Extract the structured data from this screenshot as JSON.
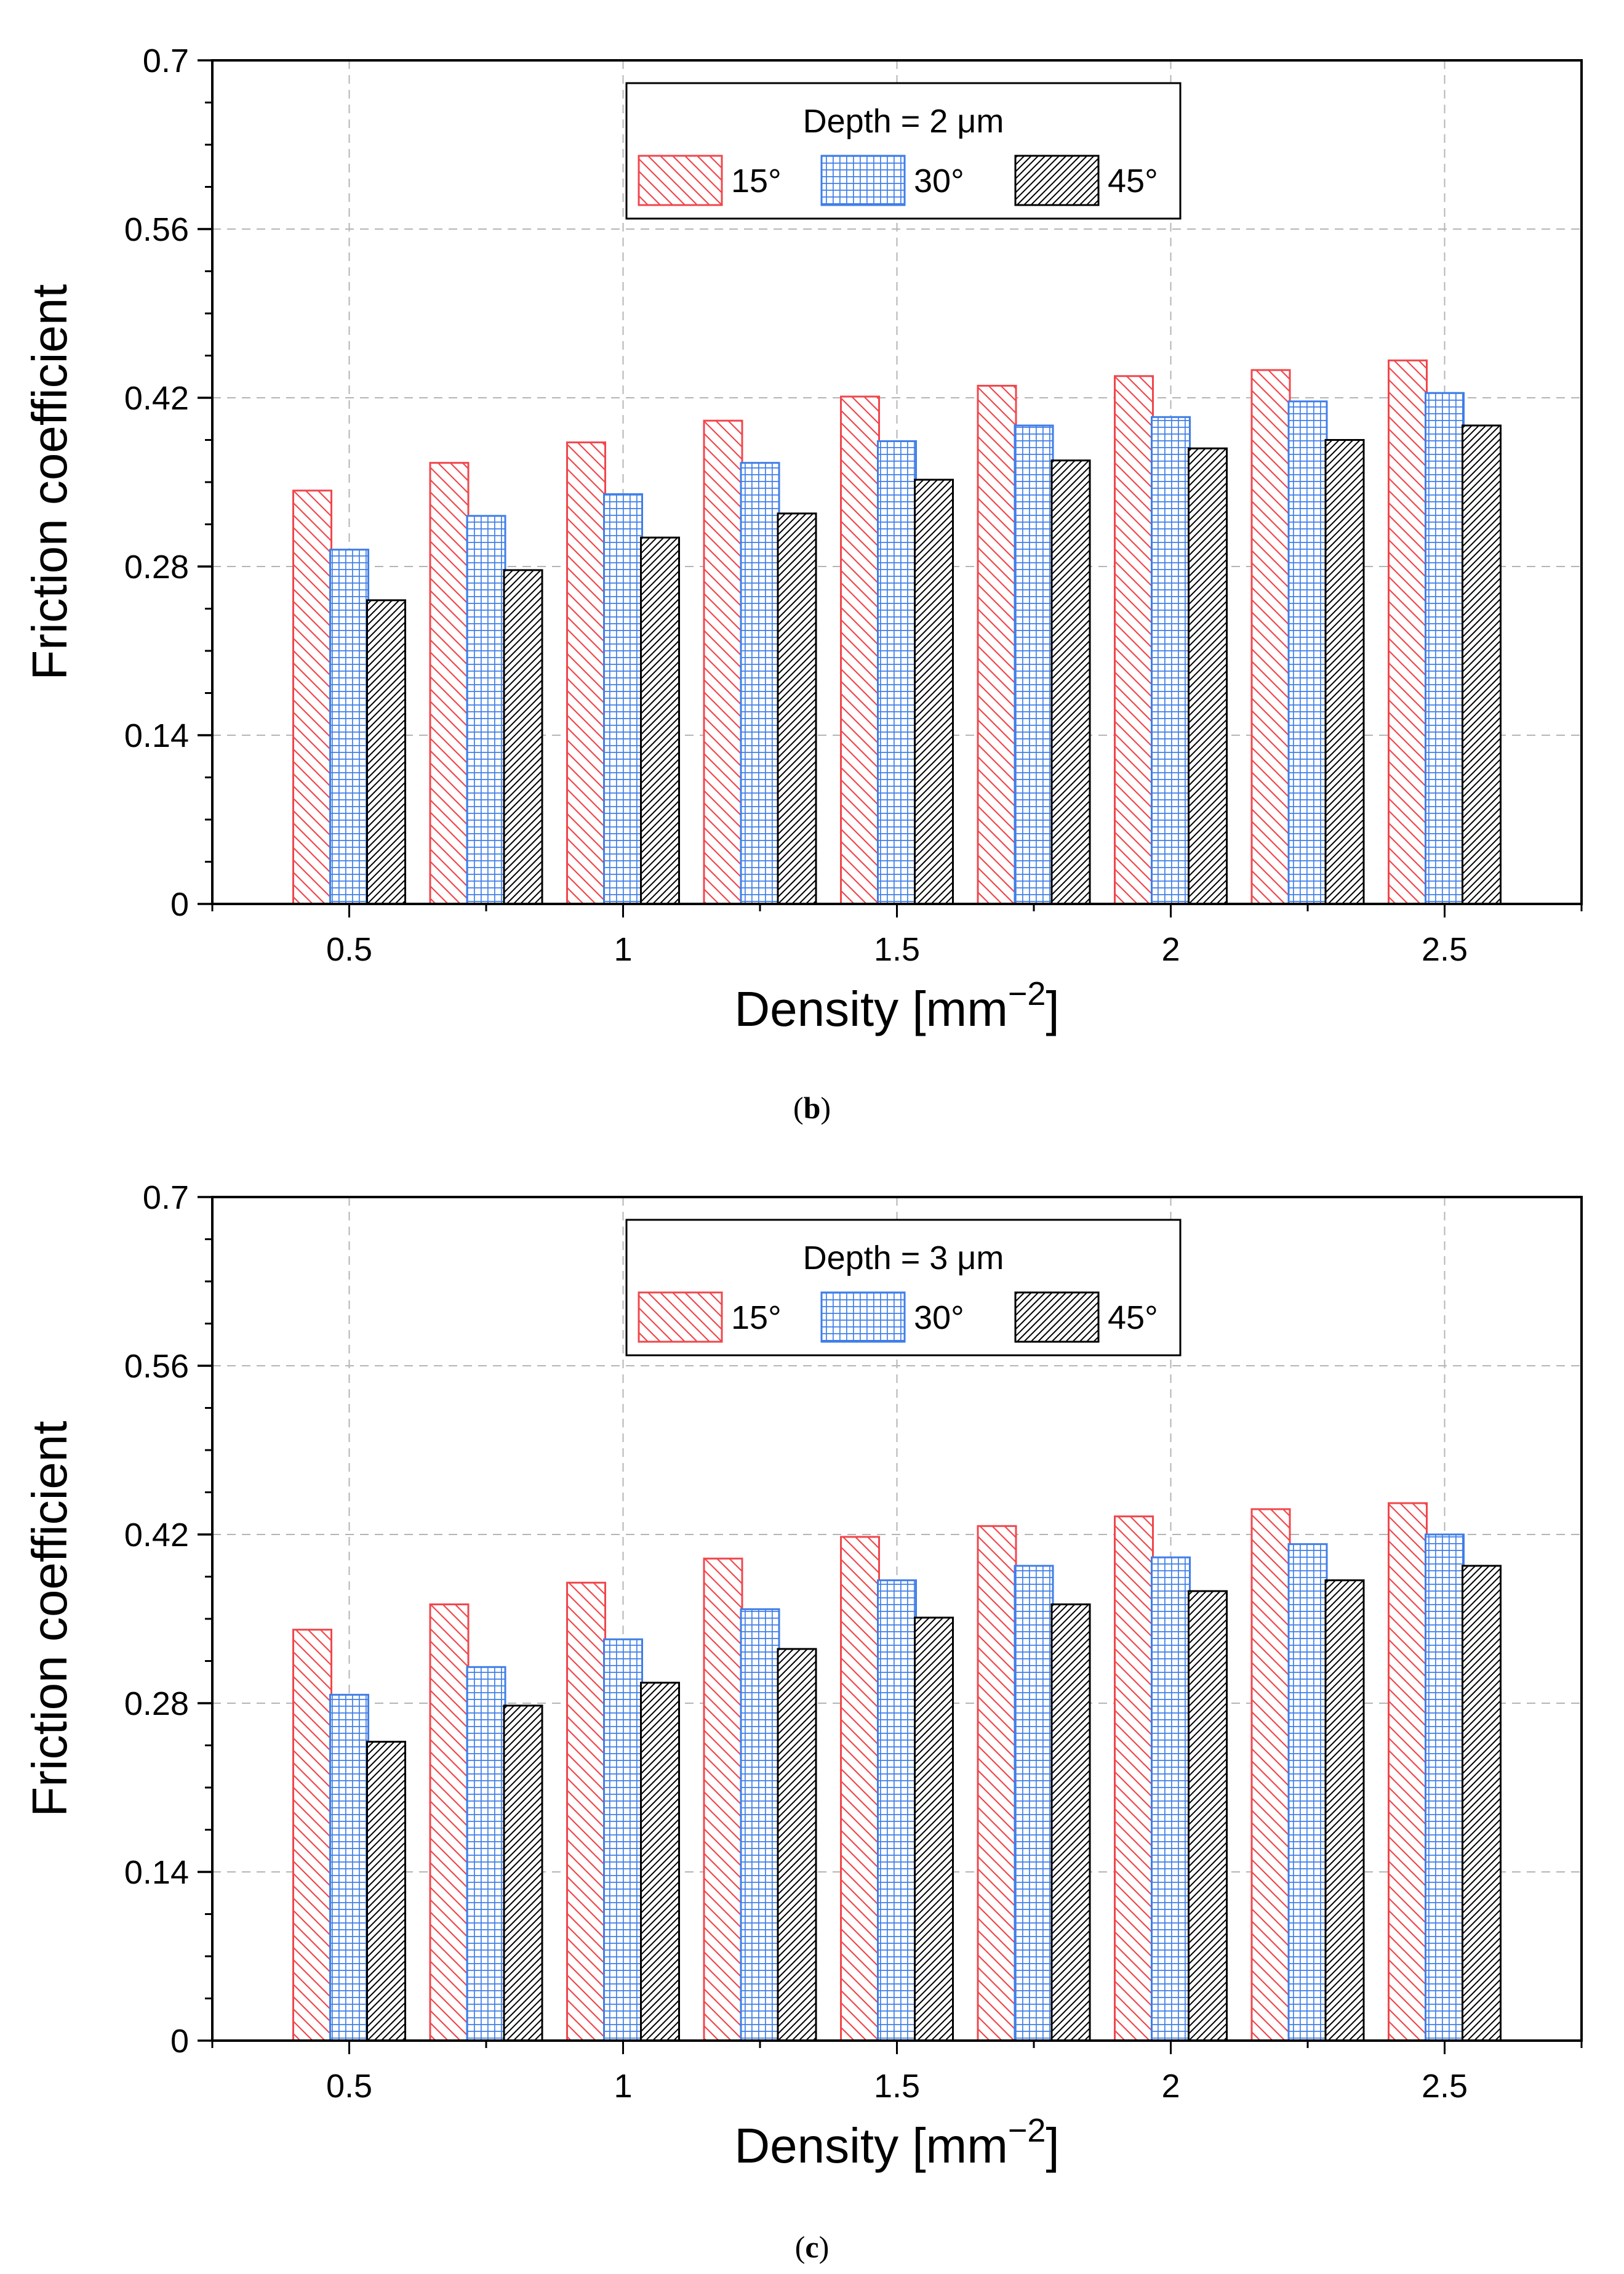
{
  "chart_data": [
    {
      "type": "bar",
      "panel": "b",
      "legend_title": "Depth = 2 μm",
      "legend_placement": "top-center",
      "xlabel": "Density [mm",
      "xlabel_superscript": "−2",
      "xlabel_suffix": "]",
      "ylabel": "Friction coefficient",
      "ylim": [
        0,
        0.7
      ],
      "yticks": [
        "0",
        "0.14",
        "0.28",
        "0.42",
        "0.56",
        "0.7"
      ],
      "xlim": [
        0.25,
        2.75
      ],
      "xticks": [
        "0.5",
        "1",
        "1.5",
        "2",
        "2.5"
      ],
      "grid": true,
      "categories": [
        0.5,
        0.75,
        1.0,
        1.25,
        1.5,
        1.75,
        2.0,
        2.25,
        2.5
      ],
      "series": [
        {
          "name": "15°",
          "color": "#f0474c",
          "pattern": "diagonal",
          "values": [
            0.343,
            0.366,
            0.383,
            0.401,
            0.421,
            0.43,
            0.438,
            0.443,
            0.451
          ]
        },
        {
          "name": "30°",
          "color": "#3f7ee8",
          "pattern": "grid",
          "values": [
            0.294,
            0.322,
            0.34,
            0.366,
            0.384,
            0.397,
            0.404,
            0.417,
            0.424
          ]
        },
        {
          "name": "45°",
          "color": "#000000",
          "pattern": "dense",
          "values": [
            0.252,
            0.277,
            0.304,
            0.324,
            0.352,
            0.368,
            0.378,
            0.385,
            0.397
          ]
        }
      ],
      "caption_open": "(",
      "caption_letter": "b",
      "caption_close": ")"
    },
    {
      "type": "bar",
      "panel": "c",
      "legend_title": "Depth = 3 μm",
      "legend_placement": "top-center",
      "xlabel": "Density [mm",
      "xlabel_superscript": "−2",
      "xlabel_suffix": "]",
      "ylabel": "Friction coefficient",
      "ylim": [
        0,
        0.7
      ],
      "yticks": [
        "0",
        "0.14",
        "0.28",
        "0.42",
        "0.56",
        "0.7"
      ],
      "xlim": [
        0.25,
        2.75
      ],
      "xticks": [
        "0.5",
        "1",
        "1.5",
        "2",
        "2.5"
      ],
      "grid": true,
      "categories": [
        0.5,
        0.75,
        1.0,
        1.25,
        1.5,
        1.75,
        2.0,
        2.25,
        2.5
      ],
      "series": [
        {
          "name": "15°",
          "color": "#f0474c",
          "pattern": "diagonal",
          "values": [
            0.341,
            0.362,
            0.38,
            0.4,
            0.418,
            0.427,
            0.435,
            0.441,
            0.446
          ]
        },
        {
          "name": "30°",
          "color": "#3f7ee8",
          "pattern": "grid",
          "values": [
            0.287,
            0.31,
            0.333,
            0.358,
            0.382,
            0.394,
            0.401,
            0.412,
            0.42
          ]
        },
        {
          "name": "45°",
          "color": "#000000",
          "pattern": "dense",
          "values": [
            0.248,
            0.278,
            0.297,
            0.325,
            0.351,
            0.362,
            0.373,
            0.382,
            0.394
          ]
        }
      ],
      "caption_open": "(",
      "caption_letter": "c",
      "caption_close": ")"
    }
  ]
}
